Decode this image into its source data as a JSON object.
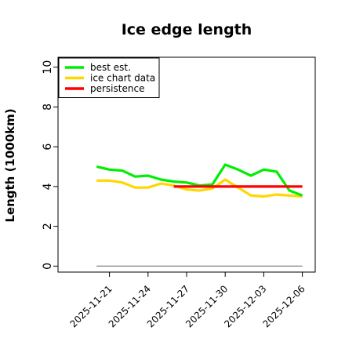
{
  "chart_data": {
    "type": "line",
    "title": "Ice edge length",
    "xlabel": "",
    "ylabel": "Length (1000km)",
    "x": [
      "2025-11-20",
      "2025-11-21",
      "2025-11-22",
      "2025-11-23",
      "2025-11-24",
      "2025-11-25",
      "2025-11-26",
      "2025-11-27",
      "2025-11-28",
      "2025-11-29",
      "2025-11-30",
      "2025-12-01",
      "2025-12-02",
      "2025-12-03",
      "2025-12-04",
      "2025-12-05",
      "2025-12-06"
    ],
    "xticks": [
      "2025-11-21",
      "2025-11-24",
      "2025-11-27",
      "2025-11-30",
      "2025-12-03",
      "2025-12-06"
    ],
    "yticks": [
      0,
      2,
      4,
      6,
      8,
      10
    ],
    "xlim": [
      "2025-11-17",
      "2025-12-07"
    ],
    "ylim": [
      -0.3,
      10.5
    ],
    "grid": false,
    "legend_position": "top-left",
    "series": [
      {
        "name": "best est.",
        "color": "#00ee00",
        "x": [
          "2025-11-20",
          "2025-11-21",
          "2025-11-22",
          "2025-11-23",
          "2025-11-24",
          "2025-11-25",
          "2025-11-26",
          "2025-11-27",
          "2025-11-28",
          "2025-11-29",
          "2025-11-30",
          "2025-12-01",
          "2025-12-02",
          "2025-12-03",
          "2025-12-04",
          "2025-12-05",
          "2025-12-06"
        ],
        "values": [
          5.0,
          4.85,
          4.8,
          4.5,
          4.55,
          4.35,
          4.25,
          4.2,
          4.05,
          4.1,
          5.1,
          4.85,
          4.55,
          4.85,
          4.75,
          3.8,
          3.55
        ]
      },
      {
        "name": "ice chart data",
        "color": "#ffd700",
        "x": [
          "2025-11-20",
          "2025-11-21",
          "2025-11-22",
          "2025-11-23",
          "2025-11-24",
          "2025-11-25",
          "2025-11-26",
          "2025-11-27",
          "2025-11-28",
          "2025-11-29",
          "2025-11-30",
          "2025-12-01",
          "2025-12-02",
          "2025-12-03",
          "2025-12-04",
          "2025-12-05",
          "2025-12-06"
        ],
        "values": [
          4.3,
          4.3,
          4.2,
          3.95,
          3.95,
          4.15,
          4.05,
          3.85,
          3.8,
          3.9,
          4.35,
          3.95,
          3.55,
          3.5,
          3.6,
          3.55,
          3.5
        ]
      },
      {
        "name": "persistence",
        "color": "#ff0000",
        "x": [
          "2025-11-26",
          "2025-12-06"
        ],
        "values": [
          4.0,
          4.0
        ]
      },
      {
        "name": "",
        "color": "#808080",
        "x": [
          "2025-11-20",
          "2025-12-06"
        ],
        "values": [
          0.0,
          0.0
        ]
      }
    ]
  }
}
